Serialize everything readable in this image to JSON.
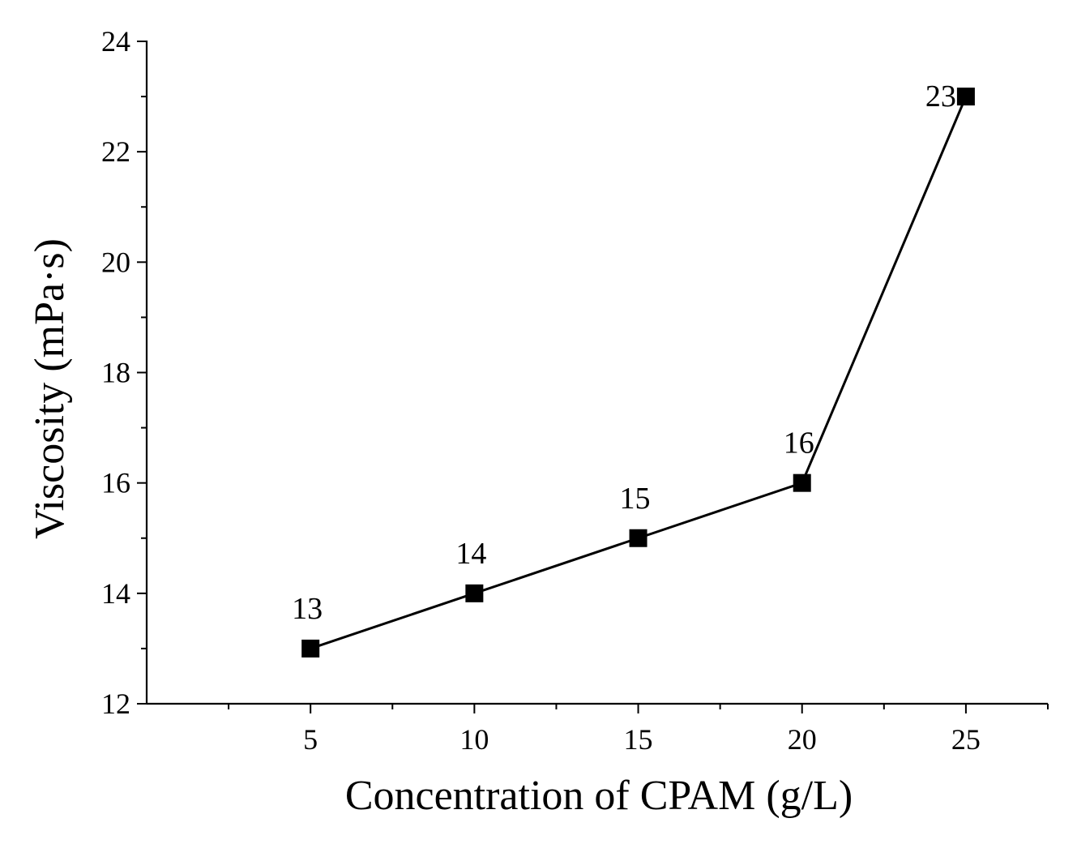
{
  "chart_data": {
    "type": "line",
    "title": "",
    "xlabel": "Concentration of CPAM (g/L)",
    "ylabel": "Viscosity (mPa·s)",
    "xlim": [
      0,
      27.5
    ],
    "ylim": [
      12,
      24
    ],
    "x_ticks": [
      5,
      10,
      15,
      20,
      25
    ],
    "x_tick_labels": [
      "5",
      "10",
      "15",
      "20",
      "25"
    ],
    "y_ticks": [
      12,
      14,
      16,
      18,
      20,
      22,
      24
    ],
    "y_tick_labels": [
      "12",
      "14",
      "16",
      "18",
      "20",
      "22",
      "24"
    ],
    "grid": false,
    "series": [
      {
        "name": "Viscosity",
        "marker": "square",
        "color": "#000000",
        "x": [
          5,
          10,
          15,
          20,
          25
        ],
        "y": [
          13,
          14,
          15,
          16,
          23
        ],
        "labels": [
          "13",
          "14",
          "15",
          "16",
          "23"
        ]
      }
    ]
  }
}
